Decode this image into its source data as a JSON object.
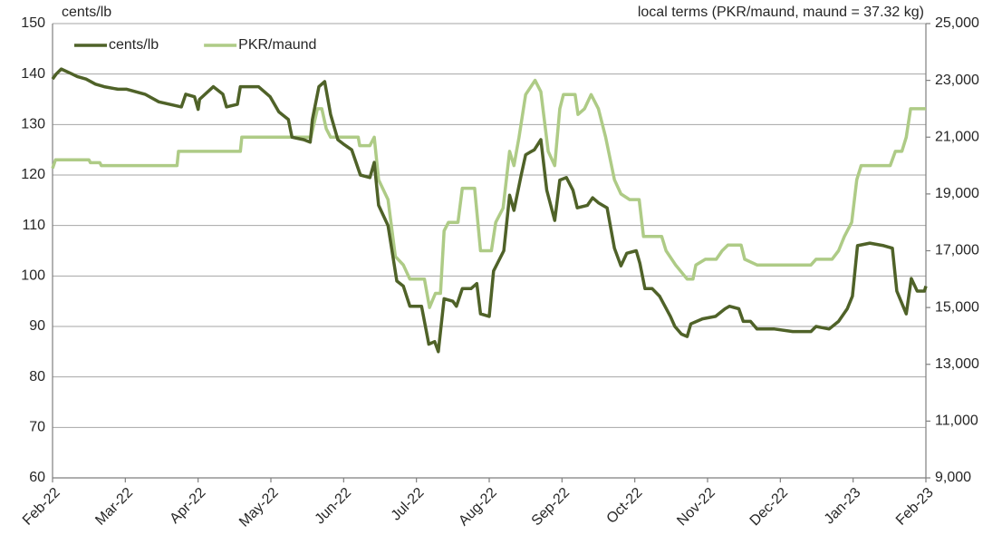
{
  "chart_data": {
    "type": "line",
    "y_label": "cents/lb",
    "y2_label": "local terms (PKR/maund, maund = 37.32 kg)",
    "xlim": [
      0,
      12
    ],
    "xticks": [
      {
        "value": 0,
        "label": "Feb-22"
      },
      {
        "value": 1,
        "label": "Mar-22"
      },
      {
        "value": 2,
        "label": "Apr-22"
      },
      {
        "value": 3,
        "label": "May-22"
      },
      {
        "value": 4,
        "label": "Jun-22"
      },
      {
        "value": 5,
        "label": "Jul-22"
      },
      {
        "value": 6,
        "label": "Aug-22"
      },
      {
        "value": 7,
        "label": "Sep-22"
      },
      {
        "value": 8,
        "label": "Oct-22"
      },
      {
        "value": 9,
        "label": "Nov-22"
      },
      {
        "value": 10,
        "label": "Dec-22"
      },
      {
        "value": 11,
        "label": "Jan-23"
      },
      {
        "value": 12,
        "label": "Feb-23"
      }
    ],
    "ylim": [
      60,
      150
    ],
    "yticks": [
      60,
      70,
      80,
      90,
      100,
      110,
      120,
      130,
      140,
      150
    ],
    "y2lim": [
      9000,
      25000
    ],
    "y2ticks": [
      {
        "value": 9000,
        "label": "9,000"
      },
      {
        "value": 11000,
        "label": "11,000"
      },
      {
        "value": 13000,
        "label": "13,000"
      },
      {
        "value": 15000,
        "label": "15,000"
      },
      {
        "value": 17000,
        "label": "17,000"
      },
      {
        "value": 19000,
        "label": "19,000"
      },
      {
        "value": 21000,
        "label": "21,000"
      },
      {
        "value": 23000,
        "label": "23,000"
      },
      {
        "value": 25000,
        "label": "25,000"
      }
    ],
    "grid": true,
    "legend": "top-left",
    "series": [
      {
        "name": "cents/lb",
        "color": "#4f6228",
        "axis": "y",
        "x": [
          0,
          0.05,
          0.12,
          0.27,
          0.34,
          0.46,
          0.59,
          0.71,
          0.9,
          1.02,
          1.27,
          1.46,
          1.77,
          1.83,
          1.95,
          2.0,
          2.02,
          2.21,
          2.34,
          2.39,
          2.54,
          2.58,
          2.83,
          2.99,
          3.11,
          3.24,
          3.29,
          3.45,
          3.54,
          3.57,
          3.66,
          3.74,
          3.82,
          3.92,
          4.01,
          4.11,
          4.23,
          4.36,
          4.42,
          4.48,
          4.61,
          4.73,
          4.82,
          4.91,
          5.07,
          5.17,
          5.25,
          5.3,
          5.38,
          5.5,
          5.55,
          5.63,
          5.75,
          5.83,
          5.88,
          6.0,
          6.06,
          6.2,
          6.28,
          6.34,
          6.44,
          6.5,
          6.56,
          6.62,
          6.71,
          6.79,
          6.9,
          6.97,
          7.06,
          7.15,
          7.21,
          7.35,
          7.42,
          7.5,
          7.62,
          7.72,
          7.81,
          7.89,
          8.02,
          8.07,
          8.14,
          8.24,
          8.34,
          8.49,
          8.55,
          8.64,
          8.72,
          8.77,
          8.93,
          9.11,
          9.24,
          9.3,
          9.43,
          9.49,
          9.59,
          9.68,
          9.92,
          10.17,
          10.42,
          10.49,
          10.67,
          10.8,
          10.92,
          10.99,
          11.06,
          11.23,
          11.42,
          11.54,
          11.6,
          11.73,
          11.8,
          11.88,
          11.98,
          12
        ],
        "values": [
          139,
          140,
          141,
          140,
          139.5,
          139,
          138,
          137.5,
          137,
          137,
          136,
          134.5,
          133.5,
          136,
          135.5,
          133,
          135,
          137.5,
          136,
          133.5,
          134,
          137.5,
          137.5,
          135.5,
          132.5,
          131,
          127.5,
          127,
          126.5,
          131,
          137.5,
          138.5,
          132,
          127,
          126,
          125,
          120,
          119.5,
          122.5,
          114,
          110,
          99,
          98,
          94,
          94,
          86.5,
          87,
          85,
          95.5,
          95,
          94,
          97.5,
          97.5,
          98.5,
          92.5,
          92,
          101,
          105,
          116,
          113,
          120,
          124,
          124.5,
          125,
          127,
          117,
          111,
          119,
          119.5,
          117,
          113.5,
          114,
          115.5,
          114.5,
          113.5,
          105.5,
          102,
          104.5,
          105,
          102.5,
          97.5,
          97.5,
          96,
          92,
          90,
          88.5,
          88,
          90.5,
          91.5,
          92,
          93.5,
          94,
          93.5,
          91,
          91,
          89.5,
          89.5,
          89,
          89,
          90,
          89.5,
          91,
          93.5,
          96,
          106,
          106.5,
          106,
          105.5,
          97,
          92.5,
          99.5,
          97,
          97,
          98
        ]
      },
      {
        "name": "PKR/maund",
        "color": "#aecb86",
        "axis": "y2",
        "x": [
          0,
          0.04,
          0.5,
          0.52,
          0.65,
          0.67,
          1.71,
          1.73,
          2.58,
          2.6,
          3.55,
          3.64,
          3.7,
          3.76,
          3.82,
          4.2,
          4.22,
          4.36,
          4.42,
          4.48,
          4.61,
          4.71,
          4.82,
          4.91,
          5.11,
          5.18,
          5.26,
          5.33,
          5.38,
          5.44,
          5.57,
          5.63,
          5.8,
          5.88,
          6.03,
          6.09,
          6.19,
          6.28,
          6.34,
          6.41,
          6.5,
          6.63,
          6.71,
          6.81,
          6.9,
          6.97,
          7.02,
          7.18,
          7.22,
          7.31,
          7.4,
          7.5,
          7.6,
          7.72,
          7.81,
          7.93,
          8.06,
          8.12,
          8.37,
          8.43,
          8.56,
          8.72,
          8.8,
          8.84,
          8.97,
          9.12,
          9.2,
          9.28,
          9.46,
          9.51,
          9.68,
          10.42,
          10.49,
          10.71,
          10.8,
          10.88,
          10.98,
          11.05,
          11.11,
          11.51,
          11.58,
          11.67,
          11.73,
          11.79,
          12
        ],
        "values": [
          19900,
          20200,
          20200,
          20100,
          20100,
          20000,
          20000,
          20500,
          20500,
          21000,
          21000,
          22000,
          22000,
          21300,
          21000,
          21000,
          20700,
          20700,
          21000,
          19500,
          18800,
          16800,
          16500,
          16000,
          16000,
          15000,
          15500,
          15500,
          17700,
          18000,
          18000,
          19200,
          19200,
          17000,
          17000,
          18000,
          18500,
          20500,
          20000,
          21000,
          22500,
          23000,
          22600,
          20500,
          20000,
          22000,
          22500,
          22500,
          21800,
          22000,
          22500,
          22000,
          21000,
          19500,
          19000,
          18800,
          18800,
          17500,
          17500,
          17000,
          16500,
          16000,
          16000,
          16500,
          16700,
          16700,
          17000,
          17200,
          17200,
          16700,
          16500,
          16500,
          16700,
          16700,
          17000,
          17500,
          18000,
          19500,
          20000,
          20000,
          20500,
          20500,
          21000,
          22000,
          22000
        ]
      }
    ]
  }
}
